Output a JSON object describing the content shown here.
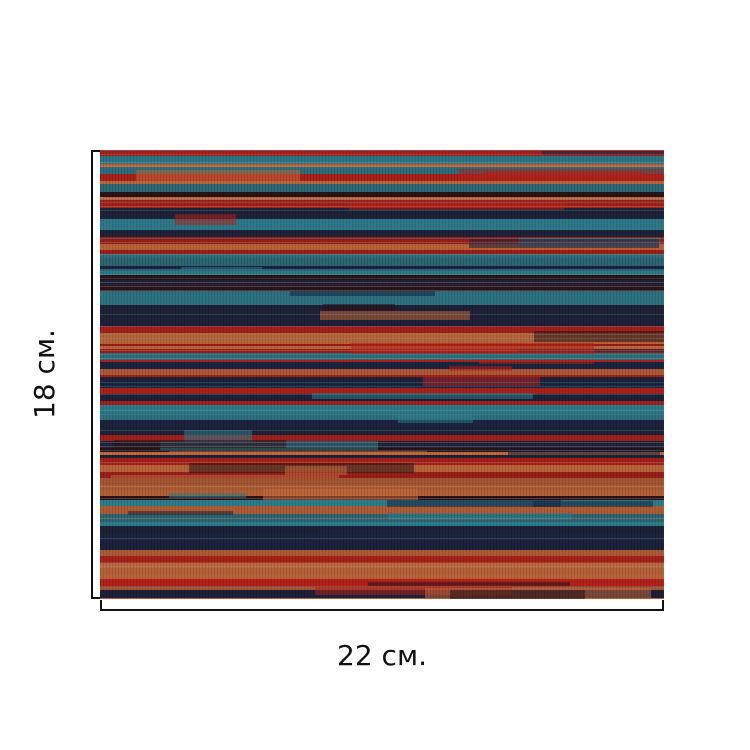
{
  "dimensions": {
    "width_label": "22 см.",
    "height_label": "18 см."
  },
  "fabric": {
    "pattern": "horizontal-stripe-weave",
    "colors": {
      "red": "#b8231c",
      "rust": "#c66a3c",
      "navy": "#1c2540",
      "teal": "#2f7f8f",
      "dark": "#2a1418"
    }
  }
}
